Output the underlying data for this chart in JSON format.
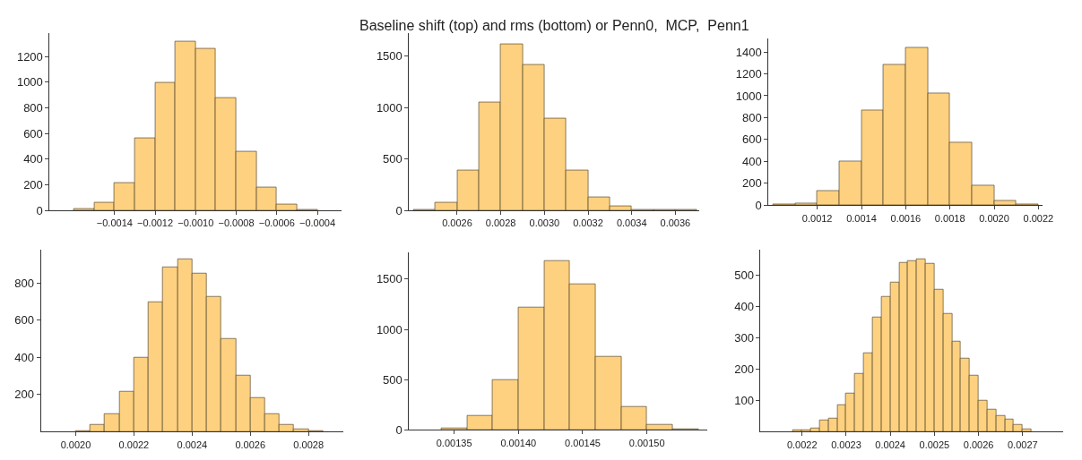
{
  "chart_data": [
    {
      "type": "histogram",
      "color": "#fdd17f",
      "bins": [
        -0.0016,
        -0.0015,
        -0.0014,
        -0.0013,
        -0.0012,
        -0.0011,
        -0.001,
        -0.0009,
        -0.0008,
        -0.0007,
        -0.0006,
        -0.0005,
        -0.0004
      ],
      "values": [
        12,
        62,
        217,
        563,
        997,
        1317,
        1262,
        877,
        461,
        178,
        48,
        7
      ],
      "xlim": [
        -0.00172,
        -0.00028
      ],
      "ylim": [
        0,
        1380
      ],
      "xticks": [
        {
          "value": -0.0014,
          "label": "−0.0014"
        },
        {
          "value": -0.0012,
          "label": "−0.0012"
        },
        {
          "value": -0.001,
          "label": "−0.0010"
        },
        {
          "value": -0.0008,
          "label": "−0.0008"
        },
        {
          "value": -0.0006,
          "label": "−0.0006"
        },
        {
          "value": -0.0004,
          "label": "−0.0004"
        }
      ],
      "yticks": [
        0,
        200,
        400,
        600,
        800,
        1000,
        1200
      ]
    },
    {
      "type": "histogram",
      "title": "Baseline shift (top) and rms (bottom) or Penn0,  MCP,  Penn1",
      "color": "#fdd17f",
      "bins": [
        0.0024,
        0.0025,
        0.0026,
        0.0027,
        0.0028,
        0.0029,
        0.003,
        0.0031,
        0.0032,
        0.0033,
        0.0034,
        0.0035,
        0.0036,
        0.0037
      ],
      "values": [
        10,
        80,
        390,
        1050,
        1620,
        1420,
        890,
        390,
        130,
        40,
        10,
        10,
        10
      ],
      "xlim": [
        0.00238,
        0.00371
      ],
      "ylim": [
        0,
        1720
      ],
      "xticks": [
        {
          "value": 0.0026,
          "label": "0.0026"
        },
        {
          "value": 0.0028,
          "label": "0.0028"
        },
        {
          "value": 0.003,
          "label": "0.0030"
        },
        {
          "value": 0.0032,
          "label": "0.0032"
        },
        {
          "value": 0.0034,
          "label": "0.0034"
        },
        {
          "value": 0.0036,
          "label": "0.0036"
        }
      ],
      "yticks": [
        0,
        500,
        1000,
        1500
      ]
    },
    {
      "type": "histogram",
      "color": "#fdd17f",
      "bins": [
        0.001,
        0.0011,
        0.0012,
        0.0013,
        0.0014,
        0.0015,
        0.0016,
        0.0017,
        0.0018,
        0.0019,
        0.002,
        0.0021,
        0.0022
      ],
      "values": [
        10,
        20,
        130,
        400,
        870,
        1280,
        1440,
        1020,
        570,
        180,
        40,
        10
      ],
      "xlim": [
        0.00098,
        0.00222
      ],
      "ylim": [
        0,
        1520
      ],
      "xticks": [
        {
          "value": 0.0012,
          "label": "0.0012"
        },
        {
          "value": 0.0014,
          "label": "0.0014"
        },
        {
          "value": 0.0016,
          "label": "0.0016"
        },
        {
          "value": 0.0018,
          "label": "0.0018"
        },
        {
          "value": 0.002,
          "label": "0.0020"
        },
        {
          "value": 0.0022,
          "label": "0.0022"
        }
      ],
      "yticks": [
        0,
        200,
        400,
        600,
        800,
        1000,
        1200,
        1400
      ]
    },
    {
      "type": "histogram",
      "color": "#fdd17f",
      "bins": [
        0.002,
        0.00205,
        0.0021,
        0.00215,
        0.0022,
        0.00225,
        0.0023,
        0.00235,
        0.0024,
        0.00245,
        0.0025,
        0.00255,
        0.0026,
        0.00265,
        0.0027,
        0.00275,
        0.0028,
        0.00285
      ],
      "values": [
        5,
        38,
        93,
        213,
        400,
        698,
        885,
        928,
        850,
        726,
        498,
        302,
        180,
        94,
        38,
        13,
        3
      ],
      "xlim": [
        0.00188,
        0.00292
      ],
      "ylim": [
        0,
        980
      ],
      "xticks": [
        {
          "value": 0.002,
          "label": "0.0020"
        },
        {
          "value": 0.0022,
          "label": "0.0022"
        },
        {
          "value": 0.0024,
          "label": "0.0024"
        },
        {
          "value": 0.0026,
          "label": "0.0026"
        },
        {
          "value": 0.0028,
          "label": "0.0028"
        }
      ],
      "yticks": [
        200,
        400,
        600,
        800
      ]
    },
    {
      "type": "histogram",
      "color": "#fdd17f",
      "bins": [
        0.00134,
        0.00136,
        0.00138,
        0.0014,
        0.00142,
        0.00144,
        0.00146,
        0.00148,
        0.0015,
        0.00152,
        0.00154
      ],
      "values": [
        20,
        140,
        500,
        1220,
        1680,
        1450,
        730,
        230,
        50,
        10
      ],
      "xlim": [
        0.001315,
        0.001547
      ],
      "ylim": [
        0,
        1770
      ],
      "xticks": [
        {
          "value": 0.00135,
          "label": "0.00135"
        },
        {
          "value": 0.0014,
          "label": "0.00140"
        },
        {
          "value": 0.00145,
          "label": "0.00145"
        },
        {
          "value": 0.0015,
          "label": "0.00150"
        }
      ],
      "yticks": [
        0,
        500,
        1000,
        1500
      ]
    },
    {
      "type": "histogram",
      "color": "#fdd17f",
      "bins": [
        0.00218,
        0.0022,
        0.00222,
        0.00224,
        0.00226,
        0.00228,
        0.0023,
        0.00232,
        0.00234,
        0.00236,
        0.00238,
        0.0024,
        0.00242,
        0.00244,
        0.00246,
        0.00248,
        0.0025,
        0.00252,
        0.00254,
        0.00256,
        0.00258,
        0.0026,
        0.00262,
        0.00264,
        0.00266,
        0.00268,
        0.0027,
        0.00272
      ],
      "values": [
        6,
        4,
        10,
        36,
        42,
        85,
        121,
        186,
        249,
        365,
        431,
        475,
        539,
        545,
        551,
        536,
        454,
        375,
        287,
        233,
        178,
        99,
        71,
        50,
        38,
        23,
        7
      ],
      "xlim": [
        0.002106,
        0.002792
      ],
      "ylim": [
        0,
        581
      ],
      "xticks": [
        {
          "value": 0.0022,
          "label": "0.0022"
        },
        {
          "value": 0.0023,
          "label": "0.0023"
        },
        {
          "value": 0.0024,
          "label": "0.0024"
        },
        {
          "value": 0.0025,
          "label": "0.0025"
        },
        {
          "value": 0.0026,
          "label": "0.0026"
        },
        {
          "value": 0.0027,
          "label": "0.0027"
        }
      ],
      "yticks": [
        100,
        200,
        300,
        400,
        500
      ]
    }
  ]
}
